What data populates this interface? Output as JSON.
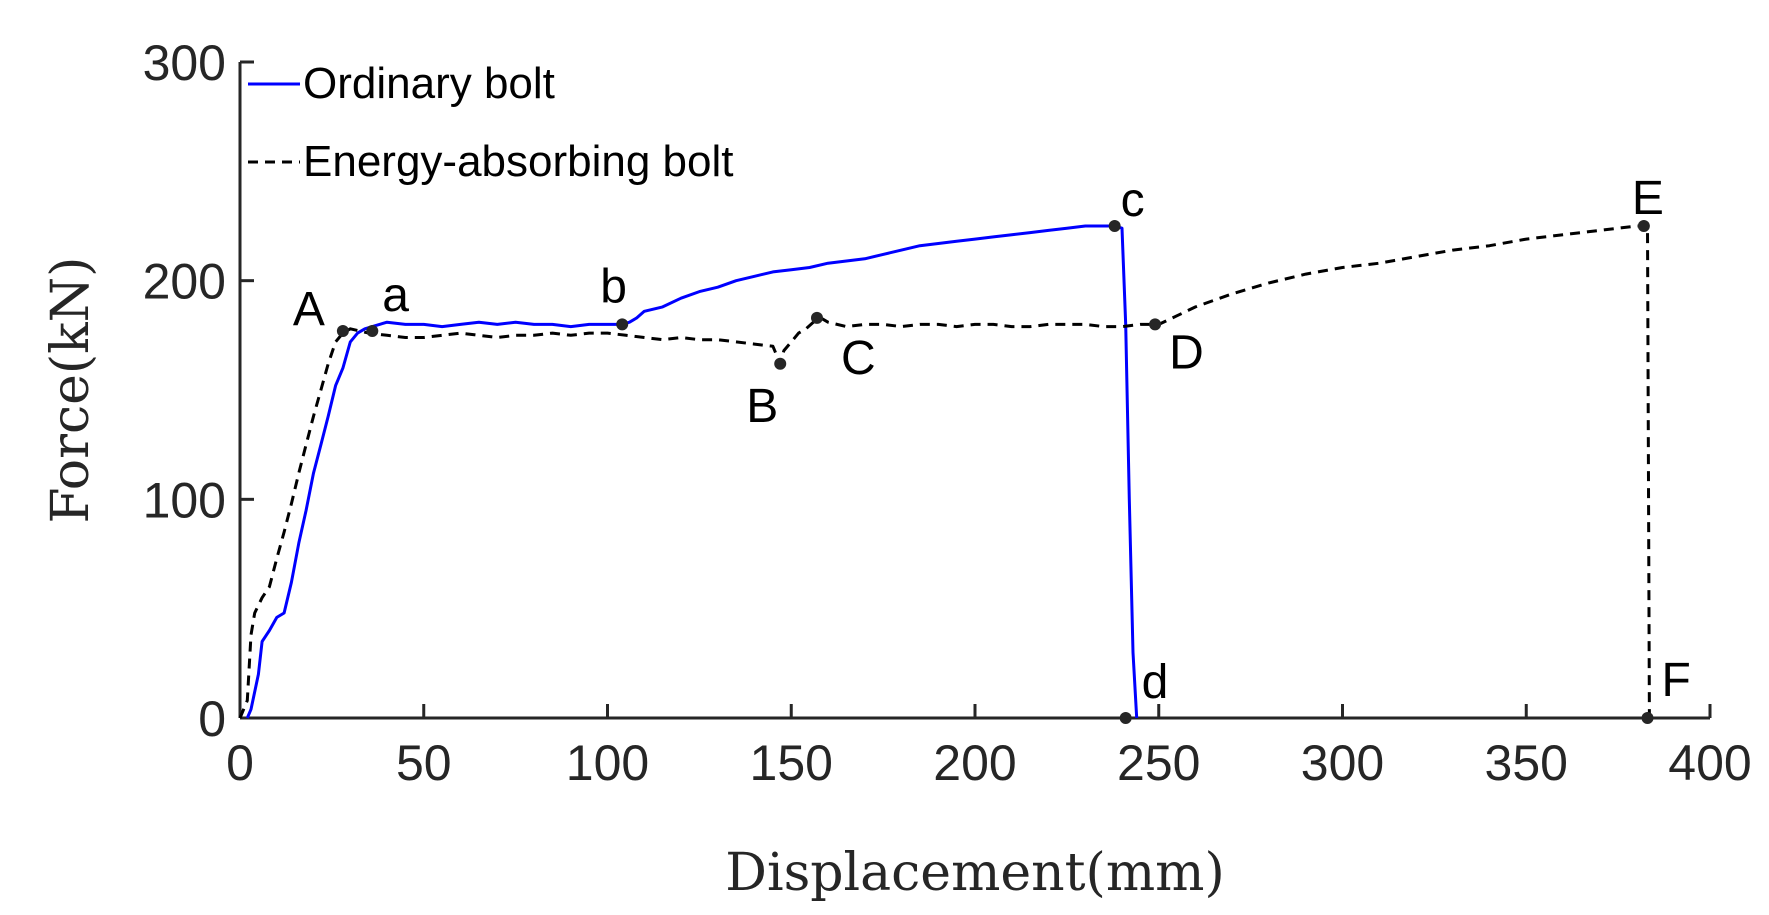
{
  "chart_data": {
    "type": "line",
    "title": "",
    "xlabel": "Displacement(mm)",
    "ylabel": "Force(kN)",
    "xlim": [
      0,
      400
    ],
    "ylim": [
      0,
      300
    ],
    "xticks": [
      0,
      50,
      100,
      150,
      200,
      250,
      300,
      350,
      400
    ],
    "yticks": [
      0,
      100,
      200,
      300
    ],
    "grid": false,
    "legend_position": "top-left",
    "series": [
      {
        "name": "Ordinary bolt",
        "style": "solid",
        "color": "#0000ff",
        "x": [
          2,
          3,
          5,
          6,
          8,
          10,
          12,
          14,
          16,
          18,
          20,
          22,
          24,
          26,
          28,
          30,
          32,
          34,
          36,
          40,
          45,
          50,
          55,
          60,
          65,
          70,
          75,
          80,
          85,
          90,
          95,
          100,
          104,
          106,
          108,
          110,
          115,
          120,
          125,
          130,
          135,
          140,
          145,
          150,
          155,
          160,
          165,
          170,
          175,
          180,
          185,
          190,
          195,
          200,
          205,
          210,
          215,
          220,
          225,
          230,
          235,
          238,
          240,
          241,
          242,
          243,
          244
        ],
        "y": [
          0,
          4,
          20,
          35,
          40,
          46,
          48,
          62,
          80,
          95,
          112,
          125,
          138,
          152,
          160,
          172,
          176,
          178,
          179,
          181,
          180,
          180,
          179,
          180,
          181,
          180,
          181,
          180,
          180,
          179,
          180,
          180,
          180,
          181,
          183,
          186,
          188,
          192,
          195,
          197,
          200,
          202,
          204,
          205,
          206,
          208,
          209,
          210,
          212,
          214,
          216,
          217,
          218,
          219,
          220,
          221,
          222,
          223,
          224,
          225,
          225,
          225,
          224,
          180,
          100,
          30,
          0
        ]
      },
      {
        "name": "Energy-absorbing bolt",
        "style": "dashed",
        "color": "#000000",
        "x": [
          0,
          2,
          3,
          4,
          6,
          8,
          10,
          12,
          14,
          16,
          18,
          20,
          22,
          24,
          26,
          28,
          30,
          35,
          40,
          45,
          50,
          55,
          60,
          65,
          70,
          75,
          80,
          85,
          90,
          95,
          100,
          105,
          110,
          115,
          120,
          125,
          130,
          135,
          140,
          145,
          147,
          148,
          150,
          152,
          154,
          156,
          158,
          160,
          165,
          170,
          175,
          180,
          185,
          190,
          195,
          200,
          205,
          210,
          215,
          220,
          225,
          230,
          235,
          240,
          245,
          250,
          255,
          260,
          265,
          270,
          280,
          290,
          300,
          310,
          320,
          330,
          340,
          350,
          360,
          370,
          380,
          383,
          383.5
        ],
        "y": [
          0,
          8,
          38,
          48,
          55,
          60,
          73,
          85,
          98,
          112,
          125,
          138,
          150,
          162,
          172,
          176,
          178,
          176,
          175,
          174,
          174,
          175,
          176,
          175,
          174,
          175,
          175,
          176,
          175,
          176,
          176,
          175,
          174,
          173,
          174,
          173,
          173,
          172,
          171,
          170,
          162,
          168,
          172,
          176,
          178,
          181,
          183,
          181,
          179,
          180,
          180,
          179,
          180,
          180,
          179,
          180,
          180,
          179,
          179,
          180,
          180,
          180,
          179,
          179,
          180,
          180,
          184,
          188,
          191,
          194,
          199,
          203,
          206,
          208,
          211,
          214,
          216,
          219,
          221,
          223,
          225,
          225,
          0
        ]
      }
    ],
    "annotations": [
      {
        "label": "A",
        "x": 28,
        "y": 177,
        "marker": true
      },
      {
        "label": "a",
        "x": 36,
        "y": 177,
        "marker": true
      },
      {
        "label": "b",
        "x": 104,
        "y": 180,
        "marker": true
      },
      {
        "label": "B",
        "x": 147,
        "y": 162,
        "marker": true
      },
      {
        "label": "C",
        "x": 157,
        "y": 183,
        "marker": true
      },
      {
        "label": "c",
        "x": 238,
        "y": 225,
        "marker": true
      },
      {
        "label": "D",
        "x": 249,
        "y": 180,
        "marker": true
      },
      {
        "label": "d",
        "x": 241,
        "y": 0,
        "marker": true
      },
      {
        "label": "E",
        "x": 382,
        "y": 225,
        "marker": true
      },
      {
        "label": "F",
        "x": 383,
        "y": 0,
        "marker": true
      }
    ]
  }
}
